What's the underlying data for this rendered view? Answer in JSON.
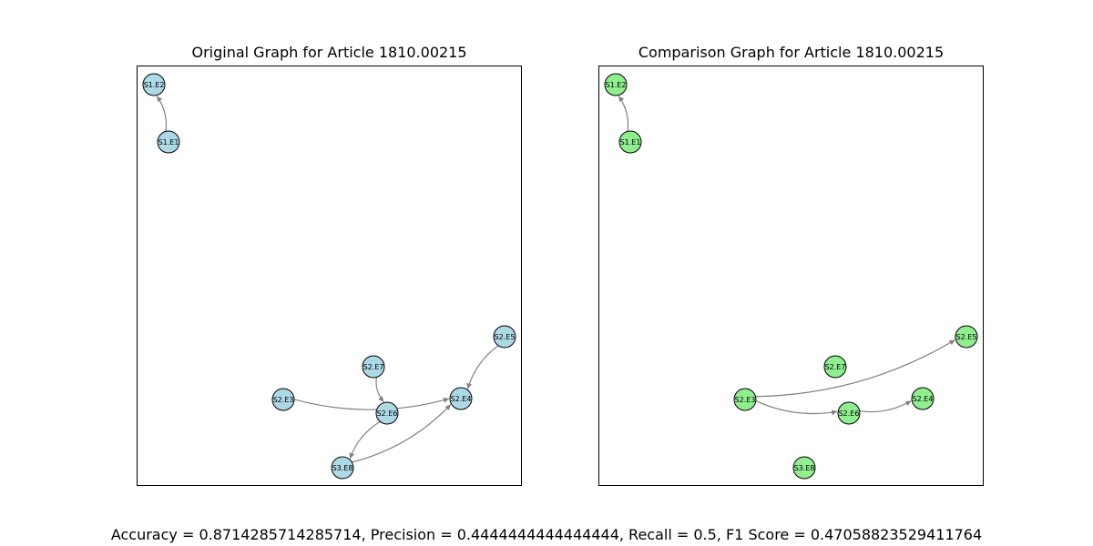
{
  "titles": {
    "left": "Original Graph for Article 1810.00215",
    "right": "Comparison Graph for Article 1810.00215"
  },
  "colors": {
    "original_node": "#add8e6",
    "comparison_node": "#90ee90",
    "edge": "#808080",
    "node_border": "#000000"
  },
  "original_graph": {
    "nodes": [
      "S1.E2",
      "S1.E1",
      "S2.E5",
      "S2.E7",
      "S2.E3",
      "S2.E6",
      "S2.E4",
      "S3.E8"
    ],
    "edges": [
      {
        "from": "S1.E1",
        "to": "S1.E2"
      },
      {
        "from": "S2.E5",
        "to": "S2.E4"
      },
      {
        "from": "S2.E7",
        "to": "S2.E6"
      },
      {
        "from": "S2.E3",
        "to": "S2.E4"
      },
      {
        "from": "S2.E6",
        "to": "S3.E8"
      },
      {
        "from": "S3.E8",
        "to": "S2.E4"
      }
    ]
  },
  "comparison_graph": {
    "nodes": [
      "S1.E2",
      "S1.E1",
      "S2.E5",
      "S2.E7",
      "S2.E3",
      "S2.E6",
      "S2.E4",
      "S3.E8"
    ],
    "edges": [
      {
        "from": "S1.E1",
        "to": "S1.E2"
      },
      {
        "from": "S2.E3",
        "to": "S2.E5"
      },
      {
        "from": "S2.E3",
        "to": "S2.E6"
      },
      {
        "from": "S2.E6",
        "to": "S2.E4"
      }
    ]
  },
  "metrics": "Accuracy = 0.8714285714285714, Precision = 0.4444444444444444, Recall = 0.5, F1 Score = 0.47058823529411764"
}
